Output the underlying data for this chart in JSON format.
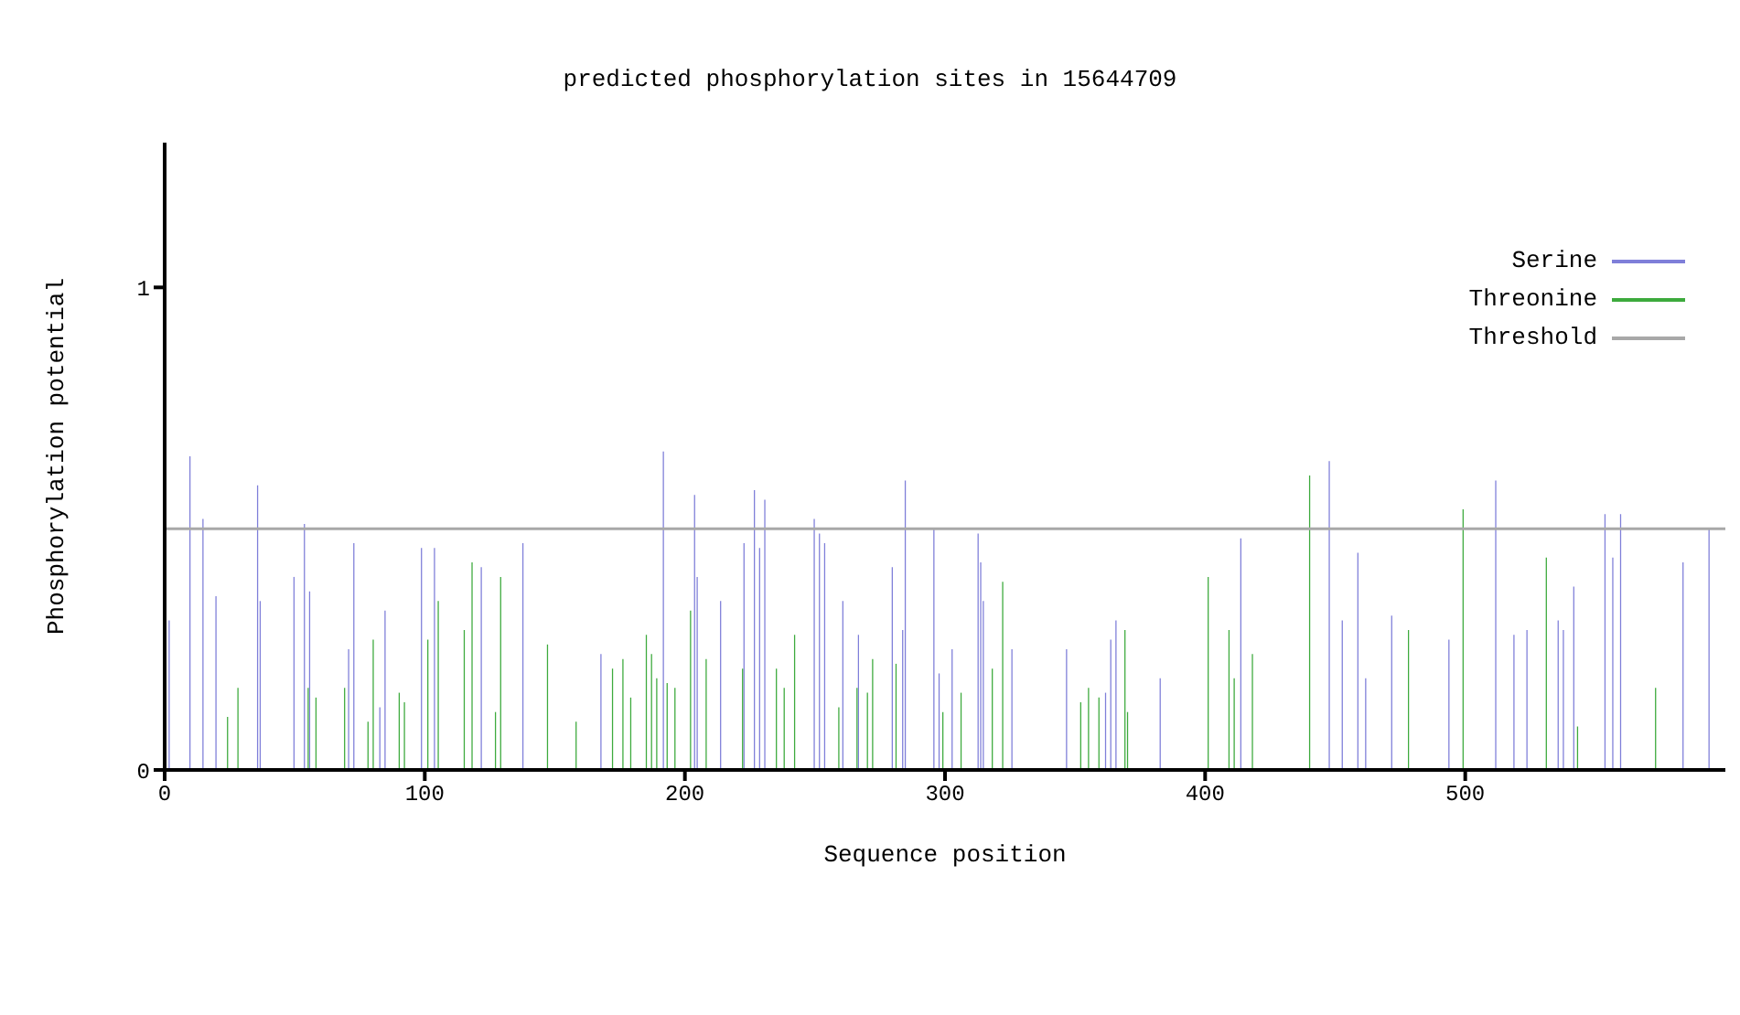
{
  "chart_data": {
    "type": "bar",
    "title": "predicted phosphorylation sites in 15644709",
    "xlabel": "Sequence position",
    "ylabel": "Phosphorylation potential",
    "xlim": [
      0,
      600
    ],
    "xticks": [
      0,
      100,
      200,
      300,
      400,
      500
    ],
    "ylim": [
      0,
      1.3
    ],
    "yticks": [
      0,
      1
    ],
    "legend": "top right",
    "series": [
      {
        "name": "Serine",
        "color": "#7f7fd9",
        "x": [
          2,
          10,
          15,
          20,
          36,
          37,
          50,
          54,
          56,
          71,
          73,
          83,
          85,
          99,
          104,
          122,
          138,
          168,
          192,
          204,
          205,
          214,
          223,
          227,
          229,
          231,
          250,
          252,
          254,
          261,
          267,
          280,
          284,
          285,
          296,
          298,
          303,
          313,
          314,
          315,
          326,
          347,
          362,
          364,
          366,
          383,
          414,
          448,
          453,
          459,
          462,
          472,
          494,
          512,
          519,
          524,
          536,
          538,
          542,
          554,
          557,
          560,
          584,
          594
        ],
        "values": [
          0.31,
          0.65,
          0.52,
          0.36,
          0.59,
          0.35,
          0.4,
          0.51,
          0.37,
          0.25,
          0.47,
          0.13,
          0.33,
          0.46,
          0.46,
          0.42,
          0.47,
          0.24,
          0.66,
          0.57,
          0.4,
          0.35,
          0.47,
          0.58,
          0.46,
          0.56,
          0.52,
          0.49,
          0.47,
          0.35,
          0.28,
          0.42,
          0.29,
          0.6,
          0.5,
          0.2,
          0.25,
          0.49,
          0.43,
          0.35,
          0.25,
          0.25,
          0.16,
          0.27,
          0.31,
          0.19,
          0.48,
          0.64,
          0.31,
          0.45,
          0.19,
          0.32,
          0.27,
          0.6,
          0.28,
          0.29,
          0.31,
          0.29,
          0.38,
          0.53,
          0.44,
          0.53,
          0.43,
          0.5
        ]
      },
      {
        "name": "Threonine",
        "color": "#3daa3d",
        "x": [
          24,
          28,
          55,
          58,
          69,
          78,
          80,
          90,
          92,
          101,
          105,
          115,
          118,
          127,
          129,
          147,
          158,
          172,
          176,
          179,
          185,
          187,
          189,
          193,
          196,
          202,
          208,
          222,
          235,
          238,
          242,
          259,
          266,
          270,
          272,
          281,
          299,
          306,
          318,
          322,
          352,
          355,
          359,
          369,
          370,
          401,
          409,
          411,
          418,
          440,
          478,
          499,
          531,
          543,
          573
        ],
        "values": [
          0.11,
          0.17,
          0.17,
          0.15,
          0.17,
          0.1,
          0.27,
          0.16,
          0.14,
          0.27,
          0.35,
          0.29,
          0.43,
          0.12,
          0.4,
          0.26,
          0.1,
          0.21,
          0.23,
          0.15,
          0.28,
          0.24,
          0.19,
          0.18,
          0.17,
          0.33,
          0.23,
          0.21,
          0.21,
          0.17,
          0.28,
          0.13,
          0.17,
          0.16,
          0.23,
          0.22,
          0.12,
          0.16,
          0.21,
          0.39,
          0.14,
          0.17,
          0.15,
          0.29,
          0.12,
          0.4,
          0.29,
          0.19,
          0.24,
          0.61,
          0.29,
          0.54,
          0.44,
          0.09,
          0.17
        ]
      },
      {
        "name": "Threshold",
        "type": "line",
        "color": "#a8a8a8",
        "x": [
          0,
          600
        ],
        "values": [
          0.5,
          0.5
        ]
      }
    ]
  }
}
